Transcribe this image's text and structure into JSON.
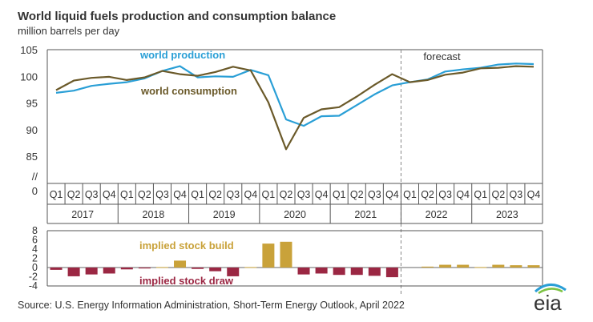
{
  "title": "World liquid fuels production and consumption balance",
  "subtitle": "million barrels per day",
  "source": "Source: U.S. Energy Information Administration, Short-Term Energy Outlook, April 2022",
  "logo_text": "eia",
  "chart_data": [
    {
      "type": "line",
      "x": [
        "2017 Q1",
        "2017 Q2",
        "2017 Q3",
        "2017 Q4",
        "2018 Q1",
        "2018 Q2",
        "2018 Q3",
        "2018 Q4",
        "2019 Q1",
        "2019 Q2",
        "2019 Q3",
        "2019 Q4",
        "2020 Q1",
        "2020 Q2",
        "2020 Q3",
        "2020 Q4",
        "2021 Q1",
        "2021 Q2",
        "2021 Q3",
        "2021 Q4",
        "2022 Q1",
        "2022 Q2",
        "2022 Q3",
        "2022 Q4",
        "2023 Q1",
        "2023 Q2",
        "2023 Q3",
        "2023 Q4"
      ],
      "quarter_labels": [
        "Q1",
        "Q2",
        "Q3",
        "Q4",
        "Q1",
        "Q2",
        "Q3",
        "Q4",
        "Q1",
        "Q2",
        "Q3",
        "Q4",
        "Q1",
        "Q2",
        "Q3",
        "Q4",
        "Q1",
        "Q2",
        "Q3",
        "Q4",
        "Q1",
        "Q2",
        "Q3",
        "Q4",
        "Q1",
        "Q2",
        "Q3",
        "Q4"
      ],
      "year_labels": [
        "2017",
        "2018",
        "2019",
        "2020",
        "2021",
        "2022",
        "2023"
      ],
      "y_ticks": [
        "105",
        "100",
        "95",
        "90",
        "85",
        "//",
        "0"
      ],
      "ylim": [
        85,
        105
      ],
      "axis_break": true,
      "series": [
        {
          "name": "world production",
          "color": "#2a9fd6",
          "values": [
            96.9,
            97.3,
            98.2,
            98.6,
            98.9,
            99.6,
            101.0,
            101.9,
            99.8,
            100.0,
            99.9,
            101.2,
            100.2,
            91.9,
            90.7,
            92.5,
            92.6,
            94.6,
            96.6,
            98.3,
            98.9,
            99.4,
            100.9,
            101.3,
            101.6,
            102.2,
            102.4,
            102.3
          ]
        },
        {
          "name": "world consumption",
          "color": "#6b5a2a",
          "values": [
            97.4,
            99.2,
            99.7,
            99.9,
            99.3,
            99.8,
            101.0,
            100.4,
            100.1,
            100.8,
            101.8,
            101.1,
            95.1,
            86.3,
            92.2,
            93.8,
            94.2,
            96.2,
            98.4,
            100.4,
            98.9,
            99.3,
            100.3,
            100.7,
            101.5,
            101.6,
            101.9,
            101.8
          ]
        }
      ],
      "forecast_label": "forecast",
      "forecast_start_index": 20,
      "grid": false
    },
    {
      "type": "bar",
      "ylim": [
        -4,
        8
      ],
      "y_ticks": [
        8,
        6,
        4,
        2,
        0,
        -2,
        -4
      ],
      "build_label": "implied stock build",
      "draw_label": "implied stock draw",
      "build_color": "#c9a23a",
      "draw_color": "#9b2743",
      "values": [
        -0.5,
        -1.9,
        -1.5,
        -1.3,
        -0.4,
        -0.2,
        0.1,
        1.5,
        -0.3,
        -0.8,
        -1.9,
        0.1,
        5.2,
        5.6,
        -1.5,
        -1.3,
        -1.6,
        -1.6,
        -1.8,
        -2.1,
        0.0,
        0.2,
        0.6,
        0.6,
        0.1,
        0.6,
        0.5,
        0.5
      ],
      "grid": false
    }
  ]
}
